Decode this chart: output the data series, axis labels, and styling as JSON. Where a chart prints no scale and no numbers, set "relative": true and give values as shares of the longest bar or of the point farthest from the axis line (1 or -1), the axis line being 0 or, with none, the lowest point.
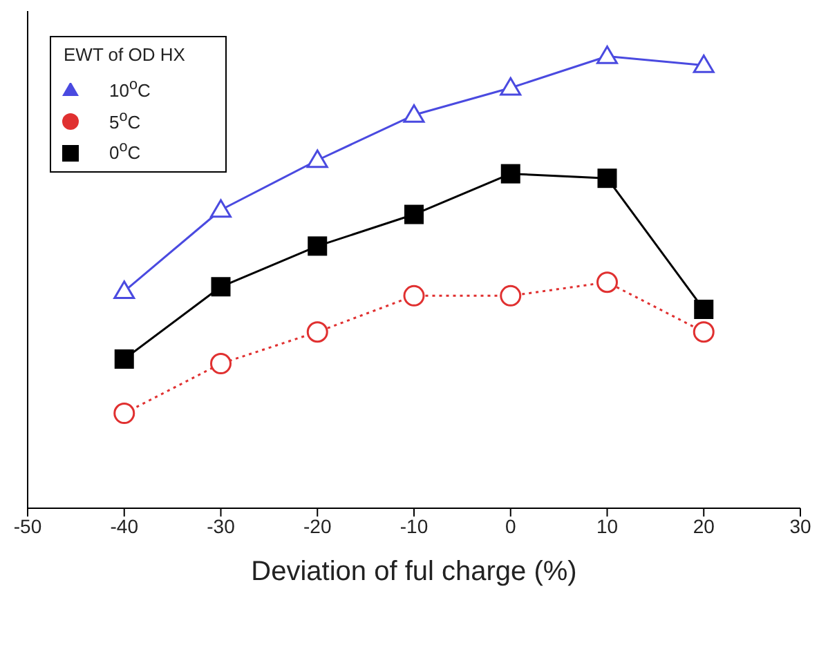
{
  "chart_data": {
    "type": "line",
    "relative": true,
    "xlabel": "Deviation of ful charge (%)",
    "legend_title": "EWT of OD HX",
    "legend": "top left",
    "x": [
      -40,
      -30,
      -20,
      -10,
      0,
      10,
      20
    ],
    "xlim": [
      -50,
      30
    ],
    "xticks": [
      -50,
      -40,
      -30,
      -20,
      -10,
      0,
      10,
      20,
      30
    ],
    "grid": false,
    "series": [
      {
        "name": "10$^{o}$C",
        "color": "#4a4ae0",
        "marker": "triangle",
        "line_style": "solid",
        "values": [
          0.48,
          0.66,
          0.77,
          0.87,
          0.93,
          1,
          0.98
        ]
      },
      {
        "name": "5$^{o}$C",
        "color": "#e03030",
        "marker": "circle",
        "line_style": "dotted",
        "values": [
          0.21,
          0.32,
          0.39,
          0.47,
          0.47,
          0.5,
          0.39
        ]
      },
      {
        "name": "0$^{o}$C",
        "color": "#000000",
        "marker": "square",
        "line_style": "solid",
        "values": [
          0.33,
          0.49,
          0.58,
          0.65,
          0.74,
          0.73,
          0.44
        ]
      }
    ]
  }
}
